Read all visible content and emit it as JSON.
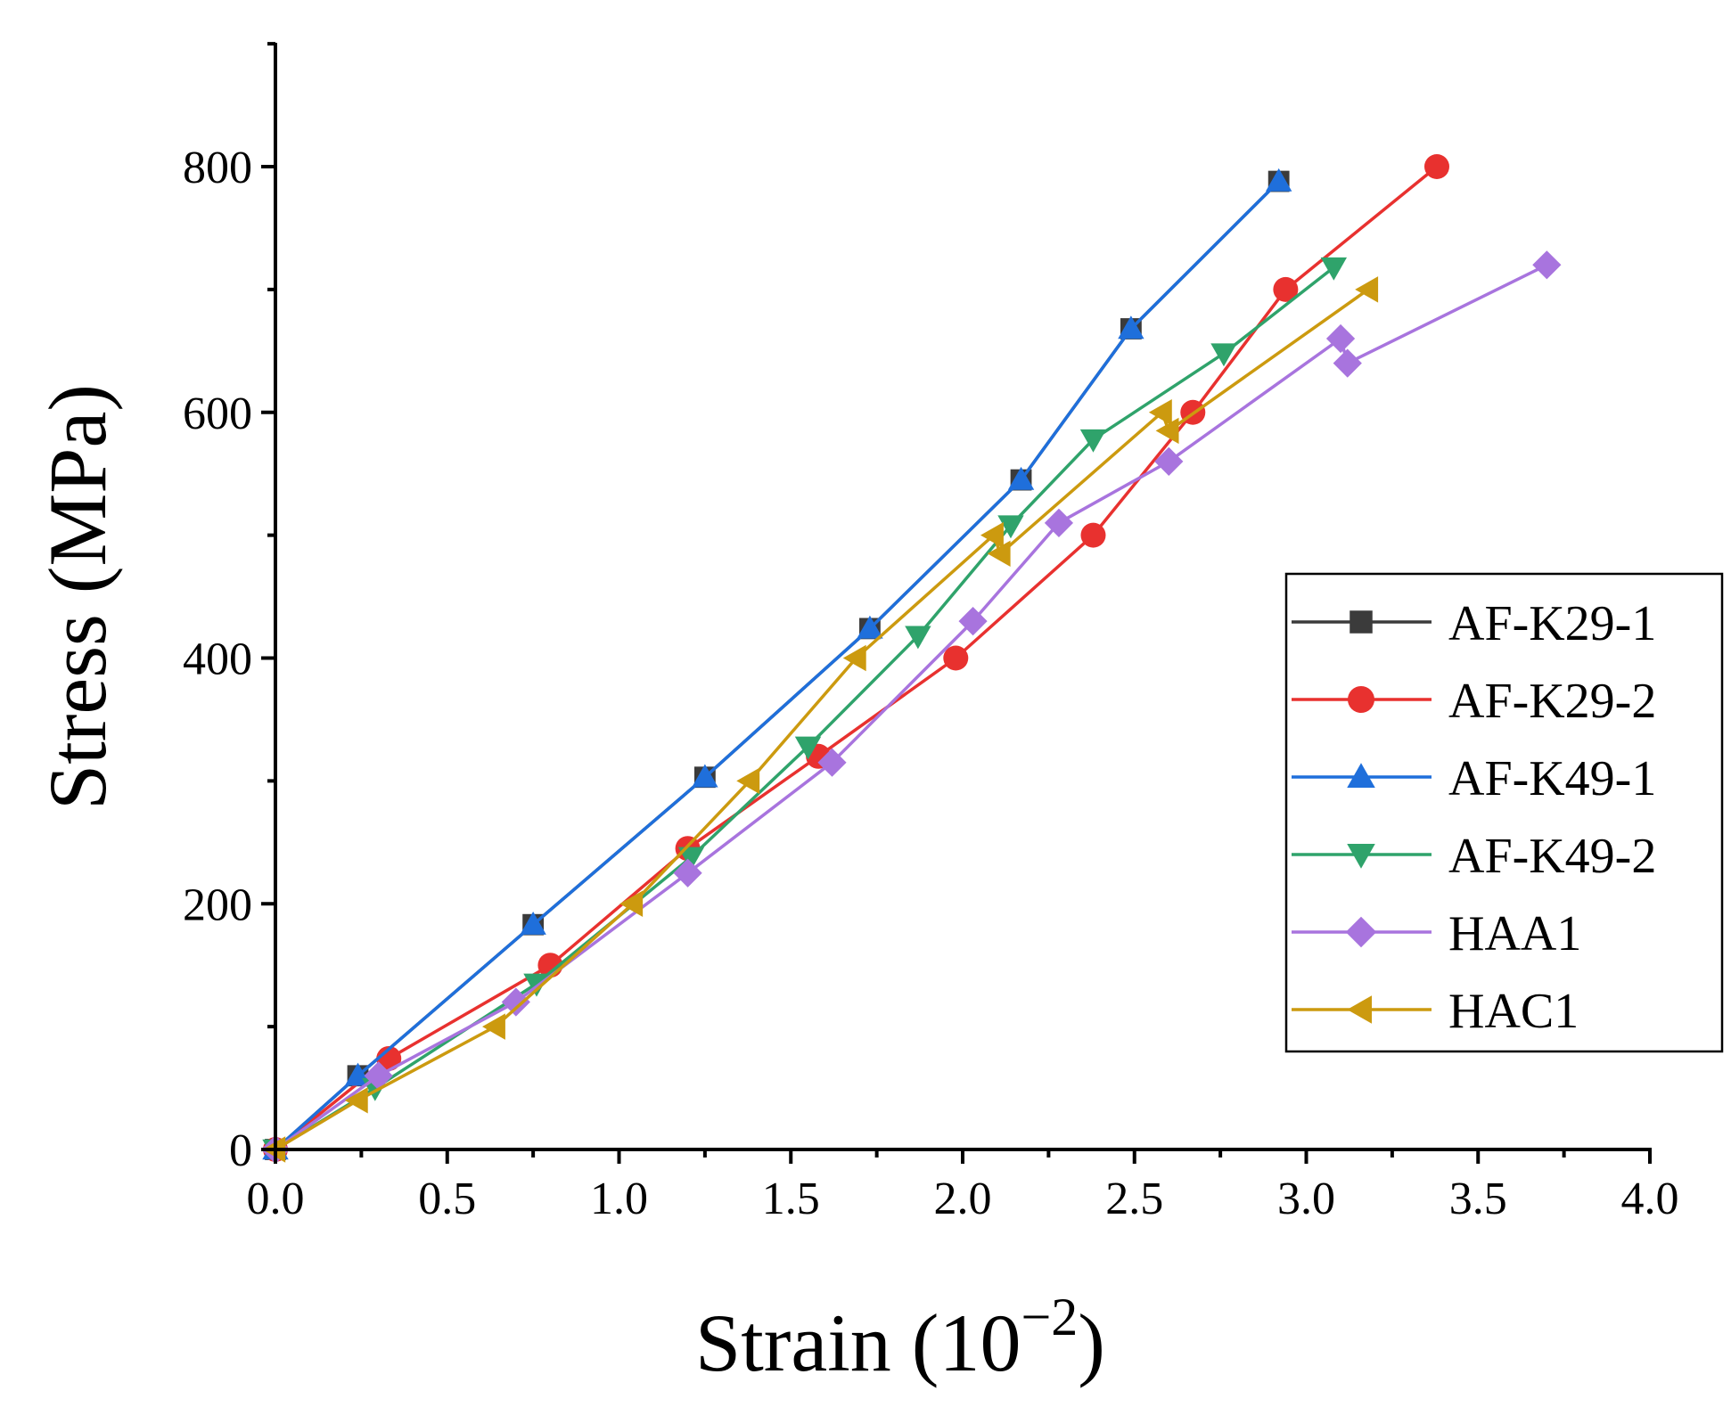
{
  "chart_data": {
    "type": "line",
    "title": "",
    "xlabel_main": "Strain (10",
    "xlabel_exp": "−2",
    "xlabel_close": ")",
    "ylabel": "Stress (MPa)",
    "xlim": [
      0.0,
      4.0
    ],
    "ylim": [
      0,
      900
    ],
    "xticks": [
      "0.0",
      "0.5",
      "1.0",
      "1.5",
      "2.0",
      "2.5",
      "3.0",
      "3.5",
      "4.0"
    ],
    "xtick_values": [
      0.0,
      0.5,
      1.0,
      1.5,
      2.0,
      2.5,
      3.0,
      3.5,
      4.0
    ],
    "yticks": [
      "0",
      "200",
      "400",
      "600",
      "800"
    ],
    "ytick_values": [
      0,
      200,
      400,
      600,
      800
    ],
    "legend_position": "right",
    "series": [
      {
        "name": "AF-K29-1",
        "color": "#3b3b3b",
        "marker": "square",
        "x": [
          0.0,
          0.24,
          0.75,
          1.25,
          1.73,
          2.17,
          2.49,
          2.92
        ],
        "y": [
          0,
          60,
          183,
          303,
          424,
          545,
          668,
          788
        ]
      },
      {
        "name": "AF-K29-2",
        "color": "#e8312f",
        "marker": "circle",
        "x": [
          0.0,
          0.33,
          0.8,
          1.2,
          1.58,
          1.98,
          2.38,
          2.67,
          2.94,
          3.38
        ],
        "y": [
          0,
          74,
          150,
          245,
          320,
          400,
          500,
          600,
          700,
          800
        ]
      },
      {
        "name": "AF-K49-1",
        "color": "#1f6fdb",
        "marker": "triangle-up",
        "x": [
          0.0,
          0.24,
          0.75,
          1.25,
          1.73,
          2.17,
          2.49,
          2.92
        ],
        "y": [
          0,
          60,
          183,
          303,
          424,
          545,
          668,
          788
        ]
      },
      {
        "name": "AF-K49-2",
        "color": "#2fa36b",
        "marker": "triangle-down",
        "x": [
          0.0,
          0.29,
          0.76,
          1.21,
          1.55,
          1.87,
          2.14,
          2.38,
          2.76,
          3.08
        ],
        "y": [
          0,
          50,
          135,
          238,
          328,
          418,
          508,
          578,
          648,
          718
        ]
      },
      {
        "name": "HAA1",
        "color": "#a874de",
        "marker": "diamond",
        "x": [
          0.0,
          0.3,
          0.7,
          1.2,
          1.62,
          2.03,
          2.28,
          2.6,
          3.1,
          3.12,
          3.7
        ],
        "y": [
          0,
          60,
          120,
          225,
          315,
          430,
          510,
          560,
          660,
          640,
          720
        ]
      },
      {
        "name": "HAC1",
        "color": "#cc9a0f",
        "marker": "triangle-left",
        "x": [
          0.0,
          0.24,
          0.64,
          1.04,
          1.38,
          1.69,
          2.09,
          2.11,
          2.58,
          2.6,
          3.18
        ],
        "y": [
          0,
          40,
          100,
          200,
          300,
          400,
          500,
          485,
          600,
          585,
          700
        ]
      }
    ]
  }
}
